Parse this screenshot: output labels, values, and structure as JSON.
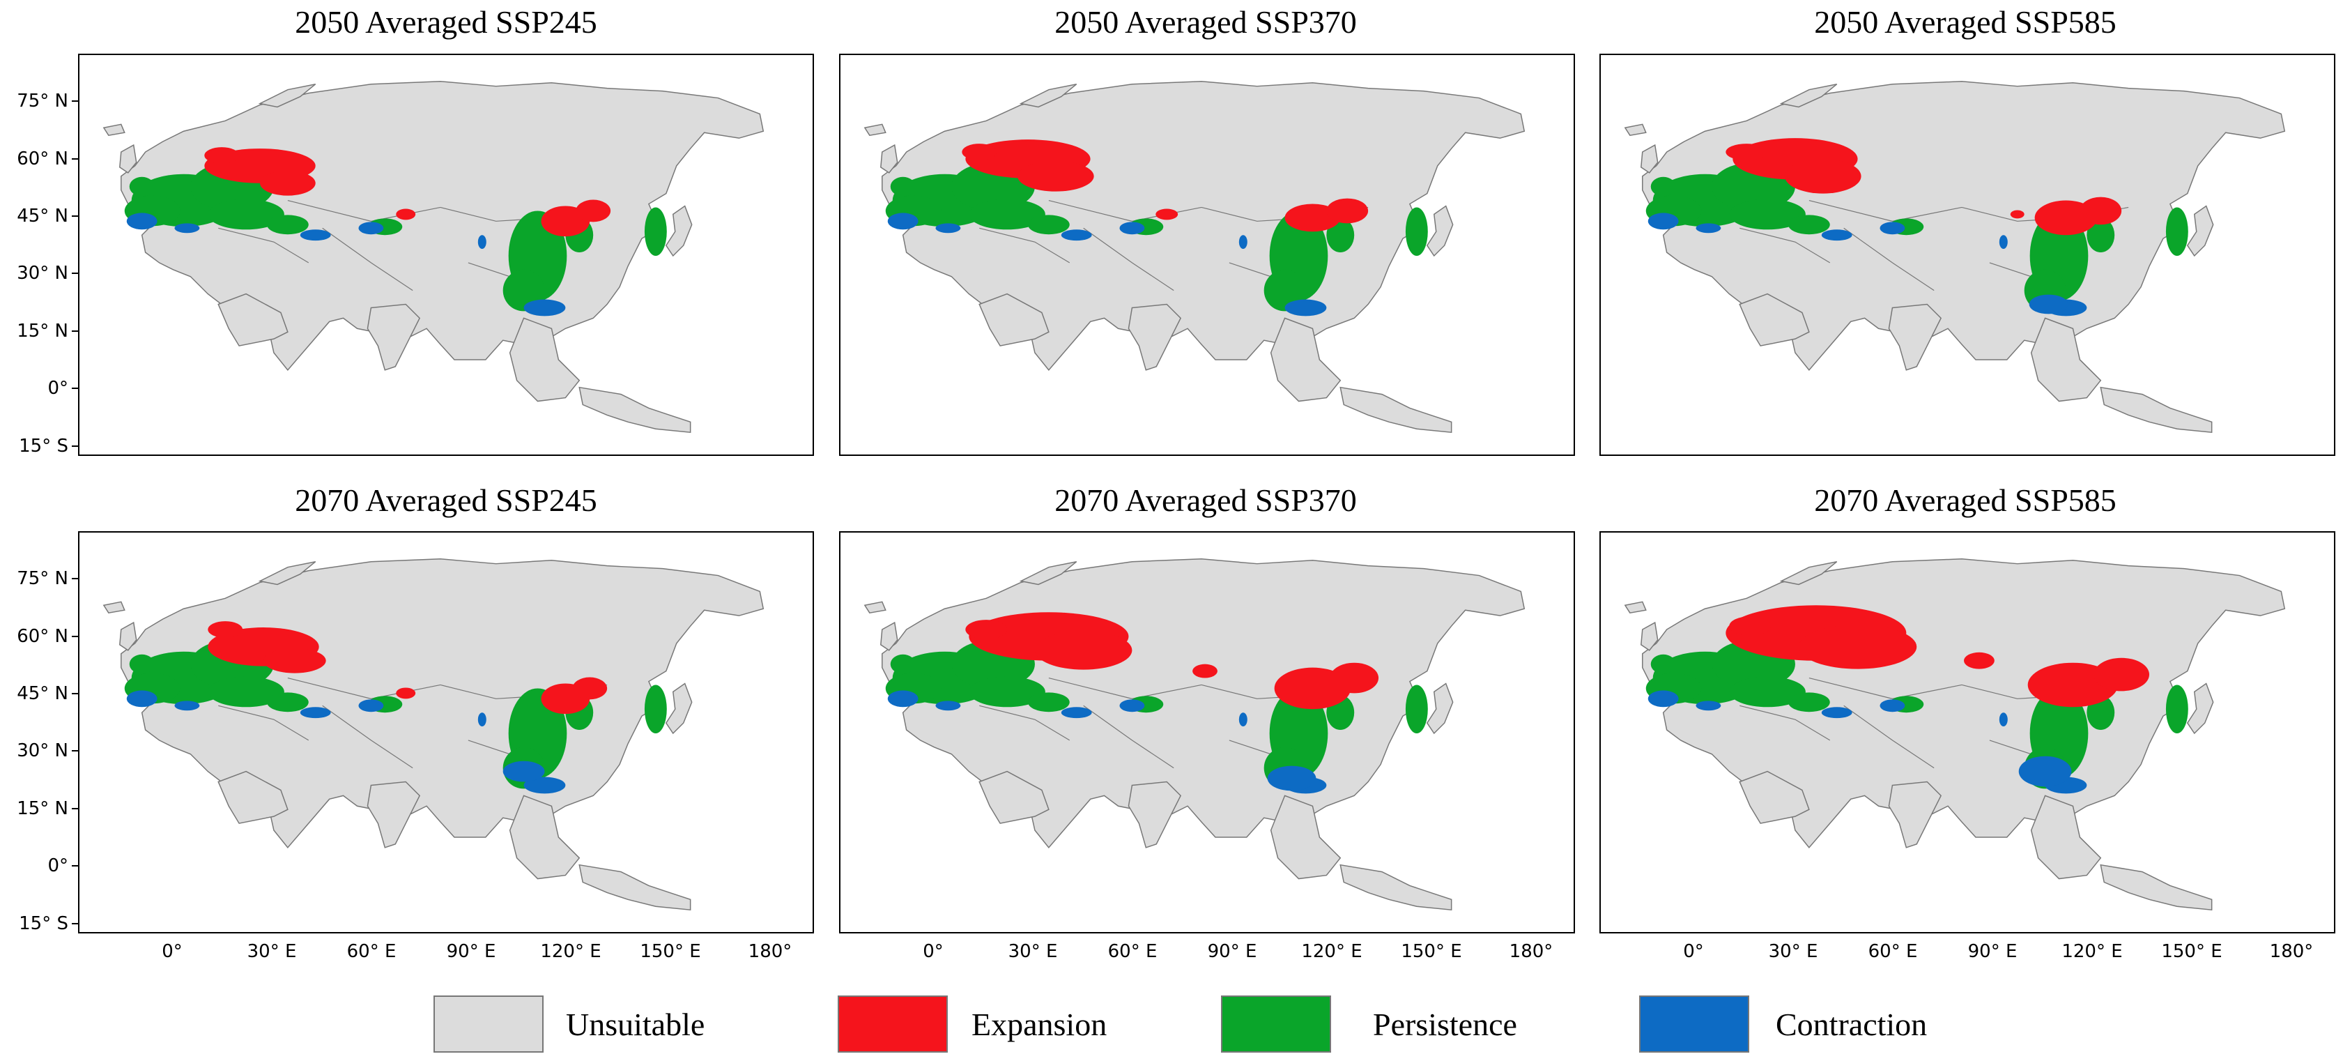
{
  "figure": {
    "panels": [
      {
        "title": "2050 Averaged SSP245",
        "scenario": "SSP245",
        "year": "2050"
      },
      {
        "title": "2050 Averaged SSP370",
        "scenario": "SSP370",
        "year": "2050"
      },
      {
        "title": "2050 Averaged SSP585",
        "scenario": "SSP585",
        "year": "2050"
      },
      {
        "title": "2070 Averaged SSP245",
        "scenario": "SSP245",
        "year": "2070"
      },
      {
        "title": "2070 Averaged SSP370",
        "scenario": "SSP370",
        "year": "2070"
      },
      {
        "title": "2070 Averaged SSP585",
        "scenario": "SSP585",
        "year": "2070"
      }
    ],
    "y_axis_labels": [
      "75° N",
      "60° N",
      "45° N",
      "30° N",
      "15° N",
      "0°",
      "15° S"
    ],
    "x_axis_labels": [
      "0°",
      "30° E",
      "60° E",
      "90° E",
      "120° E",
      "150° E",
      "180°"
    ],
    "legend": [
      {
        "label": "Unsuitable",
        "color": "#dcdcdc"
      },
      {
        "label": "Expansion",
        "color": "#f5141c"
      },
      {
        "label": "Persistence",
        "color": "#0aa52a"
      },
      {
        "label": "Contraction",
        "color": "#0d6bc4"
      }
    ],
    "colors": {
      "land": "#dcdcdc",
      "border": "#777777",
      "expansion": "#f5141c",
      "persistence": "#0aa52a",
      "contraction": "#0d6bc4"
    }
  }
}
